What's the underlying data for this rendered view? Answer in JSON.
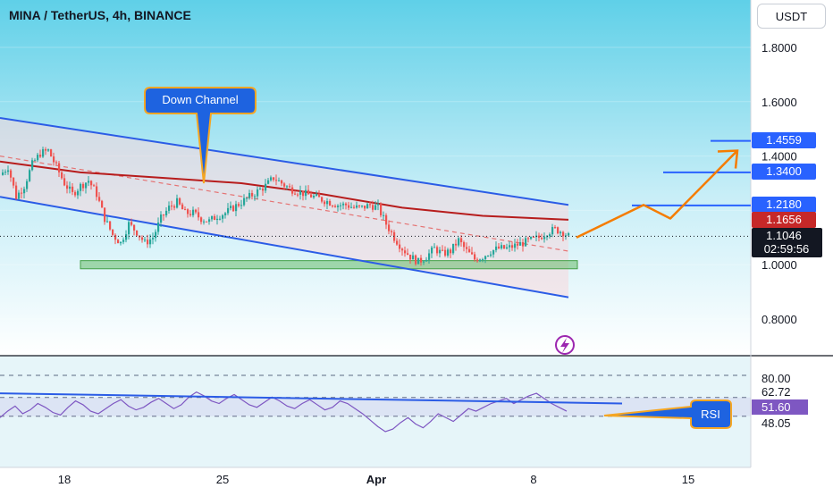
{
  "header": {
    "symbol_title": "MINA / TetherUS, 4h, BINANCE",
    "currency_button": "USDT"
  },
  "colors": {
    "up_candle": "#26a69a",
    "down_candle": "#ef5350",
    "channel_line": "#2b5ce6",
    "moving_average": "#b71c1c",
    "support_zone": "#66bb6a",
    "target_arrow": "#f57c00",
    "rsi_line": "#7e57c2",
    "price_tag_blue": "#2962ff",
    "price_tag_red": "#c62828",
    "price_tag_dark": "#131722"
  },
  "annotations": {
    "down_channel": "Down Channel",
    "rsi": "RSI"
  },
  "price_tags": {
    "target_1": "1.4559",
    "target_2": "1.3400",
    "target_3": "1.2180",
    "ma_value": "1.1656",
    "last_price": "1.1046",
    "countdown": "02:59:56"
  },
  "rsi_tags": {
    "upper": "80.00",
    "level_2": "62.72",
    "current": "51.60",
    "level_4": "48.05"
  },
  "chart_data": {
    "type": "candlestick",
    "title": "MINA / TetherUS, 4h, BINANCE",
    "price_axis": {
      "ticks": [
        "1.8000",
        "1.6000",
        "1.4000",
        "1.0000",
        "0.8000"
      ],
      "ylim": [
        0.72,
        1.9
      ]
    },
    "time_axis": {
      "ticks": [
        "18",
        "25",
        "Apr",
        "8",
        "15"
      ]
    },
    "series": [
      {
        "kind": "candles",
        "close_path": [
          [
            0,
            1.33
          ],
          [
            3,
            1.36
          ],
          [
            6,
            1.25
          ],
          [
            9,
            1.29
          ],
          [
            12,
            1.37
          ],
          [
            15,
            1.41
          ],
          [
            18,
            1.42
          ],
          [
            21,
            1.36
          ],
          [
            24,
            1.3
          ],
          [
            27,
            1.26
          ],
          [
            30,
            1.29
          ],
          [
            33,
            1.31
          ],
          [
            36,
            1.26
          ],
          [
            39,
            1.17
          ],
          [
            42,
            1.11
          ],
          [
            45,
            1.08
          ],
          [
            48,
            1.15
          ],
          [
            51,
            1.12
          ],
          [
            54,
            1.08
          ],
          [
            57,
            1.1
          ],
          [
            60,
            1.17
          ],
          [
            63,
            1.21
          ],
          [
            66,
            1.23
          ],
          [
            69,
            1.19
          ],
          [
            72,
            1.19
          ],
          [
            75,
            1.17
          ],
          [
            78,
            1.16
          ],
          [
            81,
            1.18
          ],
          [
            84,
            1.19
          ],
          [
            87,
            1.21
          ],
          [
            90,
            1.23
          ],
          [
            93,
            1.25
          ],
          [
            96,
            1.27
          ],
          [
            99,
            1.29
          ],
          [
            102,
            1.32
          ],
          [
            105,
            1.3
          ],
          [
            108,
            1.28
          ],
          [
            111,
            1.27
          ],
          [
            114,
            1.26
          ],
          [
            117,
            1.25
          ],
          [
            120,
            1.24
          ],
          [
            123,
            1.23
          ],
          [
            126,
            1.22
          ],
          [
            129,
            1.22
          ],
          [
            132,
            1.21
          ],
          [
            135,
            1.21
          ],
          [
            138,
            1.22
          ],
          [
            141,
            1.21
          ],
          [
            144,
            1.15
          ],
          [
            147,
            1.1
          ],
          [
            150,
            1.06
          ],
          [
            153,
            1.03
          ],
          [
            156,
            1.01
          ],
          [
            159,
            1.03
          ],
          [
            162,
            1.06
          ],
          [
            165,
            1.04
          ],
          [
            168,
            1.05
          ],
          [
            171,
            1.09
          ],
          [
            174,
            1.05
          ],
          [
            177,
            1.02
          ],
          [
            180,
            1.03
          ],
          [
            183,
            1.05
          ],
          [
            186,
            1.06
          ],
          [
            189,
            1.06
          ],
          [
            192,
            1.07
          ],
          [
            195,
            1.08
          ],
          [
            198,
            1.09
          ],
          [
            201,
            1.1
          ],
          [
            204,
            1.12
          ],
          [
            207,
            1.13
          ],
          [
            210,
            1.12
          ],
          [
            212,
            1.1046
          ]
        ]
      },
      {
        "kind": "moving_average",
        "points": [
          [
            0,
            1.38
          ],
          [
            30,
            1.34
          ],
          [
            60,
            1.32
          ],
          [
            90,
            1.3
          ],
          [
            120,
            1.26
          ],
          [
            150,
            1.21
          ],
          [
            180,
            1.18
          ],
          [
            212,
            1.1656
          ]
        ]
      },
      {
        "kind": "channel_upper",
        "points": [
          [
            0,
            1.54
          ],
          [
            212,
            1.22
          ]
        ]
      },
      {
        "kind": "channel_lower",
        "points": [
          [
            0,
            1.25
          ],
          [
            212,
            0.88
          ]
        ]
      },
      {
        "kind": "channel_mid",
        "points": [
          [
            0,
            1.4
          ],
          [
            212,
            1.05
          ]
        ]
      },
      {
        "kind": "support_zone",
        "y_range": [
          0.985,
          1.015
        ]
      },
      {
        "kind": "projection",
        "points": [
          [
            215,
            1.1
          ],
          [
            240,
            1.22
          ],
          [
            250,
            1.17
          ],
          [
            275,
            1.42
          ]
        ]
      },
      {
        "kind": "target_levels",
        "values": [
          1.4559,
          1.34,
          1.218
        ]
      }
    ],
    "rsi": {
      "ylim": [
        15,
        85
      ],
      "levels": [
        80,
        62.72,
        48.05
      ],
      "current": 51.6,
      "values": [
        47,
        52,
        56,
        50,
        53,
        58,
        55,
        51,
        49,
        55,
        60,
        57,
        52,
        50,
        54,
        58,
        61,
        56,
        53,
        55,
        59,
        62,
        58,
        54,
        57,
        63,
        67,
        64,
        60,
        58,
        62,
        65,
        61,
        57,
        55,
        59,
        63,
        60,
        56,
        54,
        58,
        61,
        57,
        53,
        55,
        60,
        58,
        54,
        50,
        45,
        40,
        36,
        38,
        43,
        47,
        42,
        39,
        44,
        50,
        47,
        44,
        49,
        54,
        52,
        55,
        58,
        60,
        62,
        58,
        61,
        64,
        66,
        62,
        58,
        55,
        52
      ],
      "trend_line": [
        [
          0,
          66
        ],
        [
          232,
          58
        ]
      ]
    }
  }
}
